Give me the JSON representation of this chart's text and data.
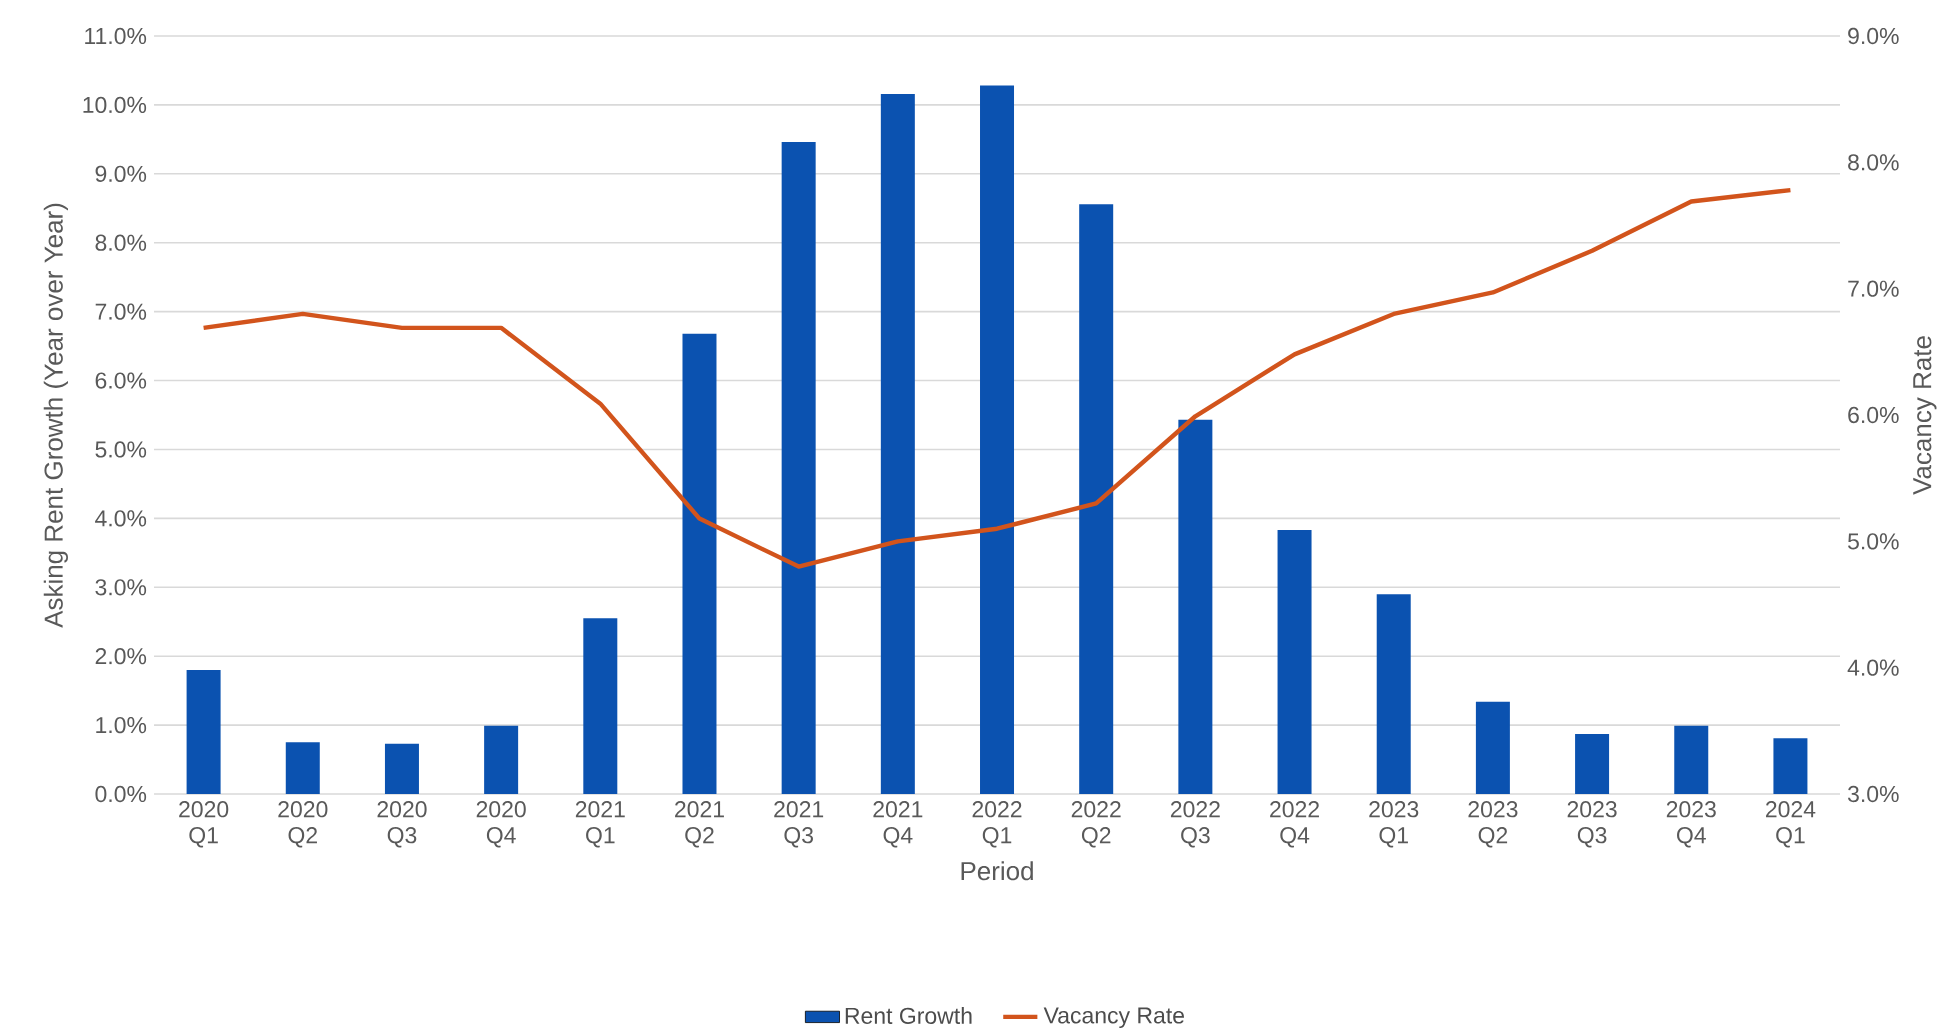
{
  "chart_data": {
    "type": "bar",
    "xlabel": "Period",
    "ylabel": "Asking Rent Growth  (Year over Year)",
    "y2label": "Vacancy Rate",
    "categories": [
      "2020 Q1",
      "2020 Q2",
      "2020 Q3",
      "2020 Q4",
      "2021 Q1",
      "2021 Q2",
      "2021 Q3",
      "2021 Q4",
      "2022 Q1",
      "2022 Q2",
      "2022 Q3",
      "2022 Q4",
      "2023 Q1",
      "2023 Q2",
      "2023 Q3",
      "2023 Q4",
      "2024 Q1"
    ],
    "series": [
      {
        "name": "Rent Growth",
        "color": "#0b52b0",
        "values": [
          1.8,
          0.75,
          0.73,
          0.99,
          2.55,
          6.68,
          9.46,
          10.16,
          10.28,
          8.56,
          5.43,
          3.83,
          2.9,
          1.34,
          0.87,
          0.99,
          0.81
        ]
      },
      {
        "name": "Vacancy Rate",
        "type": "line",
        "axis": "y2",
        "color": "#d2541c",
        "values": [
          6.69,
          6.8,
          6.69,
          6.69,
          6.09,
          5.18,
          4.8,
          5.0,
          5.1,
          5.3,
          5.99,
          6.48,
          6.8,
          6.97,
          7.3,
          7.69,
          7.78
        ]
      }
    ],
    "ylim": [
      0,
      11
    ],
    "yticks": [
      {
        "value": 0,
        "label": "0.0%"
      },
      {
        "value": 1,
        "label": "1.0%"
      },
      {
        "value": 2,
        "label": "2.0%"
      },
      {
        "value": 3,
        "label": "3.0%"
      },
      {
        "value": 4,
        "label": "4.0%"
      },
      {
        "value": 5,
        "label": "5.0%"
      },
      {
        "value": 6,
        "label": "6.0%"
      },
      {
        "value": 7,
        "label": "7.0%"
      },
      {
        "value": 8,
        "label": "8.0%"
      },
      {
        "value": 9,
        "label": "9.0%"
      },
      {
        "value": 10,
        "label": "10.0%"
      },
      {
        "value": 11,
        "label": "11.0%"
      }
    ],
    "y2lim": [
      3,
      9
    ],
    "y2ticks": [
      {
        "value": 3,
        "label": "3.0%"
      },
      {
        "value": 4,
        "label": "4.0%"
      },
      {
        "value": 5,
        "label": "5.0%"
      },
      {
        "value": 6,
        "label": "6.0%"
      },
      {
        "value": 7,
        "label": "7.0%"
      },
      {
        "value": 8,
        "label": "8.0%"
      },
      {
        "value": 9,
        "label": "9.0%"
      }
    ],
    "grid": "y",
    "legend": "bottom",
    "marker": "none",
    "line_style": "solid"
  }
}
